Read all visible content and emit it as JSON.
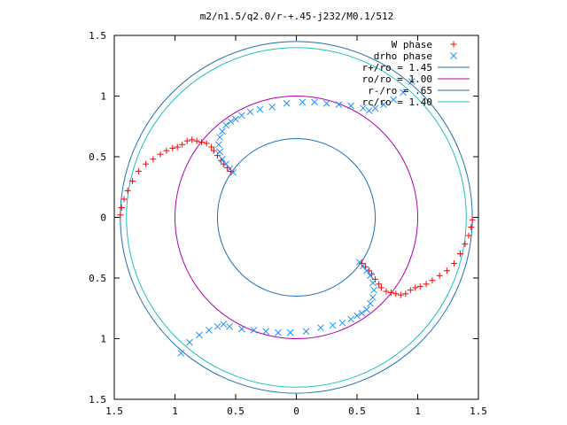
{
  "chart_data": {
    "type": "scatter",
    "title": "m2/n1.5/q2.0/r-+.45-j232/M0.1/512",
    "xlim": [
      -1.5,
      1.5
    ],
    "ylim": [
      -1.5,
      1.5
    ],
    "x_ticks": [
      -1.5,
      -1,
      -0.5,
      0,
      0.5,
      1,
      1.5
    ],
    "y_ticks": [
      -1.5,
      -1,
      -0.5,
      0,
      0.5,
      1,
      1.5
    ],
    "x_tick_labels": [
      "1.5",
      "1",
      "0.5",
      "0",
      "0.5",
      "1",
      "1.5"
    ],
    "y_tick_labels": [
      "1.5",
      "1",
      "0.5",
      "0",
      "0.5",
      "1",
      "1.5"
    ],
    "grid": false,
    "legend_position": "top-right",
    "series": [
      {
        "name": "W phase",
        "marker": "plus",
        "color": "#ff0000",
        "x": [
          -0.54,
          -0.57,
          -0.6,
          -0.62,
          -0.65,
          -0.68,
          -0.7,
          -0.74,
          -0.78,
          -0.82,
          -0.86,
          -0.9,
          -0.94,
          -0.98,
          -1.02,
          -1.07,
          -1.12,
          -1.18,
          -1.24,
          -1.3,
          -1.35,
          -1.39,
          -1.42,
          -1.44,
          -1.45
        ],
        "y": [
          0.38,
          0.41,
          0.44,
          0.47,
          0.51,
          0.55,
          0.58,
          0.61,
          0.62,
          0.63,
          0.64,
          0.63,
          0.6,
          0.58,
          0.57,
          0.55,
          0.52,
          0.48,
          0.44,
          0.38,
          0.3,
          0.22,
          0.15,
          0.08,
          0.02
        ]
      },
      {
        "name": "W phase",
        "marker": "plus",
        "color": "#ff0000",
        "x": [
          0.54,
          0.57,
          0.6,
          0.62,
          0.65,
          0.68,
          0.7,
          0.74,
          0.78,
          0.82,
          0.86,
          0.9,
          0.94,
          0.98,
          1.02,
          1.07,
          1.12,
          1.18,
          1.24,
          1.3,
          1.35,
          1.39,
          1.42,
          1.44,
          1.45
        ],
        "y": [
          -0.38,
          -0.41,
          -0.44,
          -0.47,
          -0.51,
          -0.55,
          -0.58,
          -0.61,
          -0.62,
          -0.63,
          -0.64,
          -0.63,
          -0.6,
          -0.58,
          -0.57,
          -0.55,
          -0.52,
          -0.48,
          -0.44,
          -0.38,
          -0.3,
          -0.22,
          -0.15,
          -0.08,
          -0.02
        ]
      },
      {
        "name": "drho phase",
        "marker": "cross",
        "color": "#1e90ff",
        "x": [
          -0.52,
          -0.55,
          -0.58,
          -0.61,
          -0.63,
          -0.64,
          -0.63,
          -0.61,
          -0.58,
          -0.54,
          -0.5,
          -0.45,
          -0.38,
          -0.3,
          -0.2,
          -0.08,
          0.05,
          0.15,
          0.25,
          0.35,
          0.45,
          0.55,
          0.6,
          0.65,
          0.72,
          0.8,
          0.88,
          0.95
        ],
        "y": [
          0.37,
          0.4,
          0.44,
          0.48,
          0.54,
          0.6,
          0.66,
          0.71,
          0.76,
          0.79,
          0.81,
          0.84,
          0.87,
          0.89,
          0.91,
          0.94,
          0.95,
          0.95,
          0.94,
          0.93,
          0.92,
          0.9,
          0.88,
          0.9,
          0.93,
          0.97,
          1.03,
          1.12
        ]
      },
      {
        "name": "drho phase",
        "marker": "cross",
        "color": "#1e90ff",
        "x": [
          0.52,
          0.55,
          0.58,
          0.61,
          0.63,
          0.64,
          0.63,
          0.61,
          0.58,
          0.54,
          0.5,
          0.45,
          0.38,
          0.3,
          0.2,
          0.08,
          -0.05,
          -0.15,
          -0.25,
          -0.35,
          -0.45,
          -0.55,
          -0.6,
          -0.65,
          -0.72,
          -0.8,
          -0.88,
          -0.95
        ],
        "y": [
          -0.37,
          -0.4,
          -0.44,
          -0.48,
          -0.54,
          -0.6,
          -0.66,
          -0.71,
          -0.76,
          -0.79,
          -0.81,
          -0.84,
          -0.87,
          -0.89,
          -0.91,
          -0.94,
          -0.95,
          -0.95,
          -0.94,
          -0.93,
          -0.92,
          -0.9,
          -0.88,
          -0.9,
          -0.93,
          -0.97,
          -1.03,
          -1.12
        ]
      }
    ],
    "circles": [
      {
        "label": "r+/ro = 1.45",
        "r": 1.45,
        "color": "#1f6fb4"
      },
      {
        "label": "ro/ro = 1.00",
        "r": 1.0,
        "color": "#b000b0"
      },
      {
        "label": "r-/ro = .65",
        "r": 0.65,
        "color": "#1f6fb4"
      },
      {
        "label": "rc/ro = 1.40",
        "r": 1.4,
        "color": "#20c0c0"
      }
    ]
  }
}
